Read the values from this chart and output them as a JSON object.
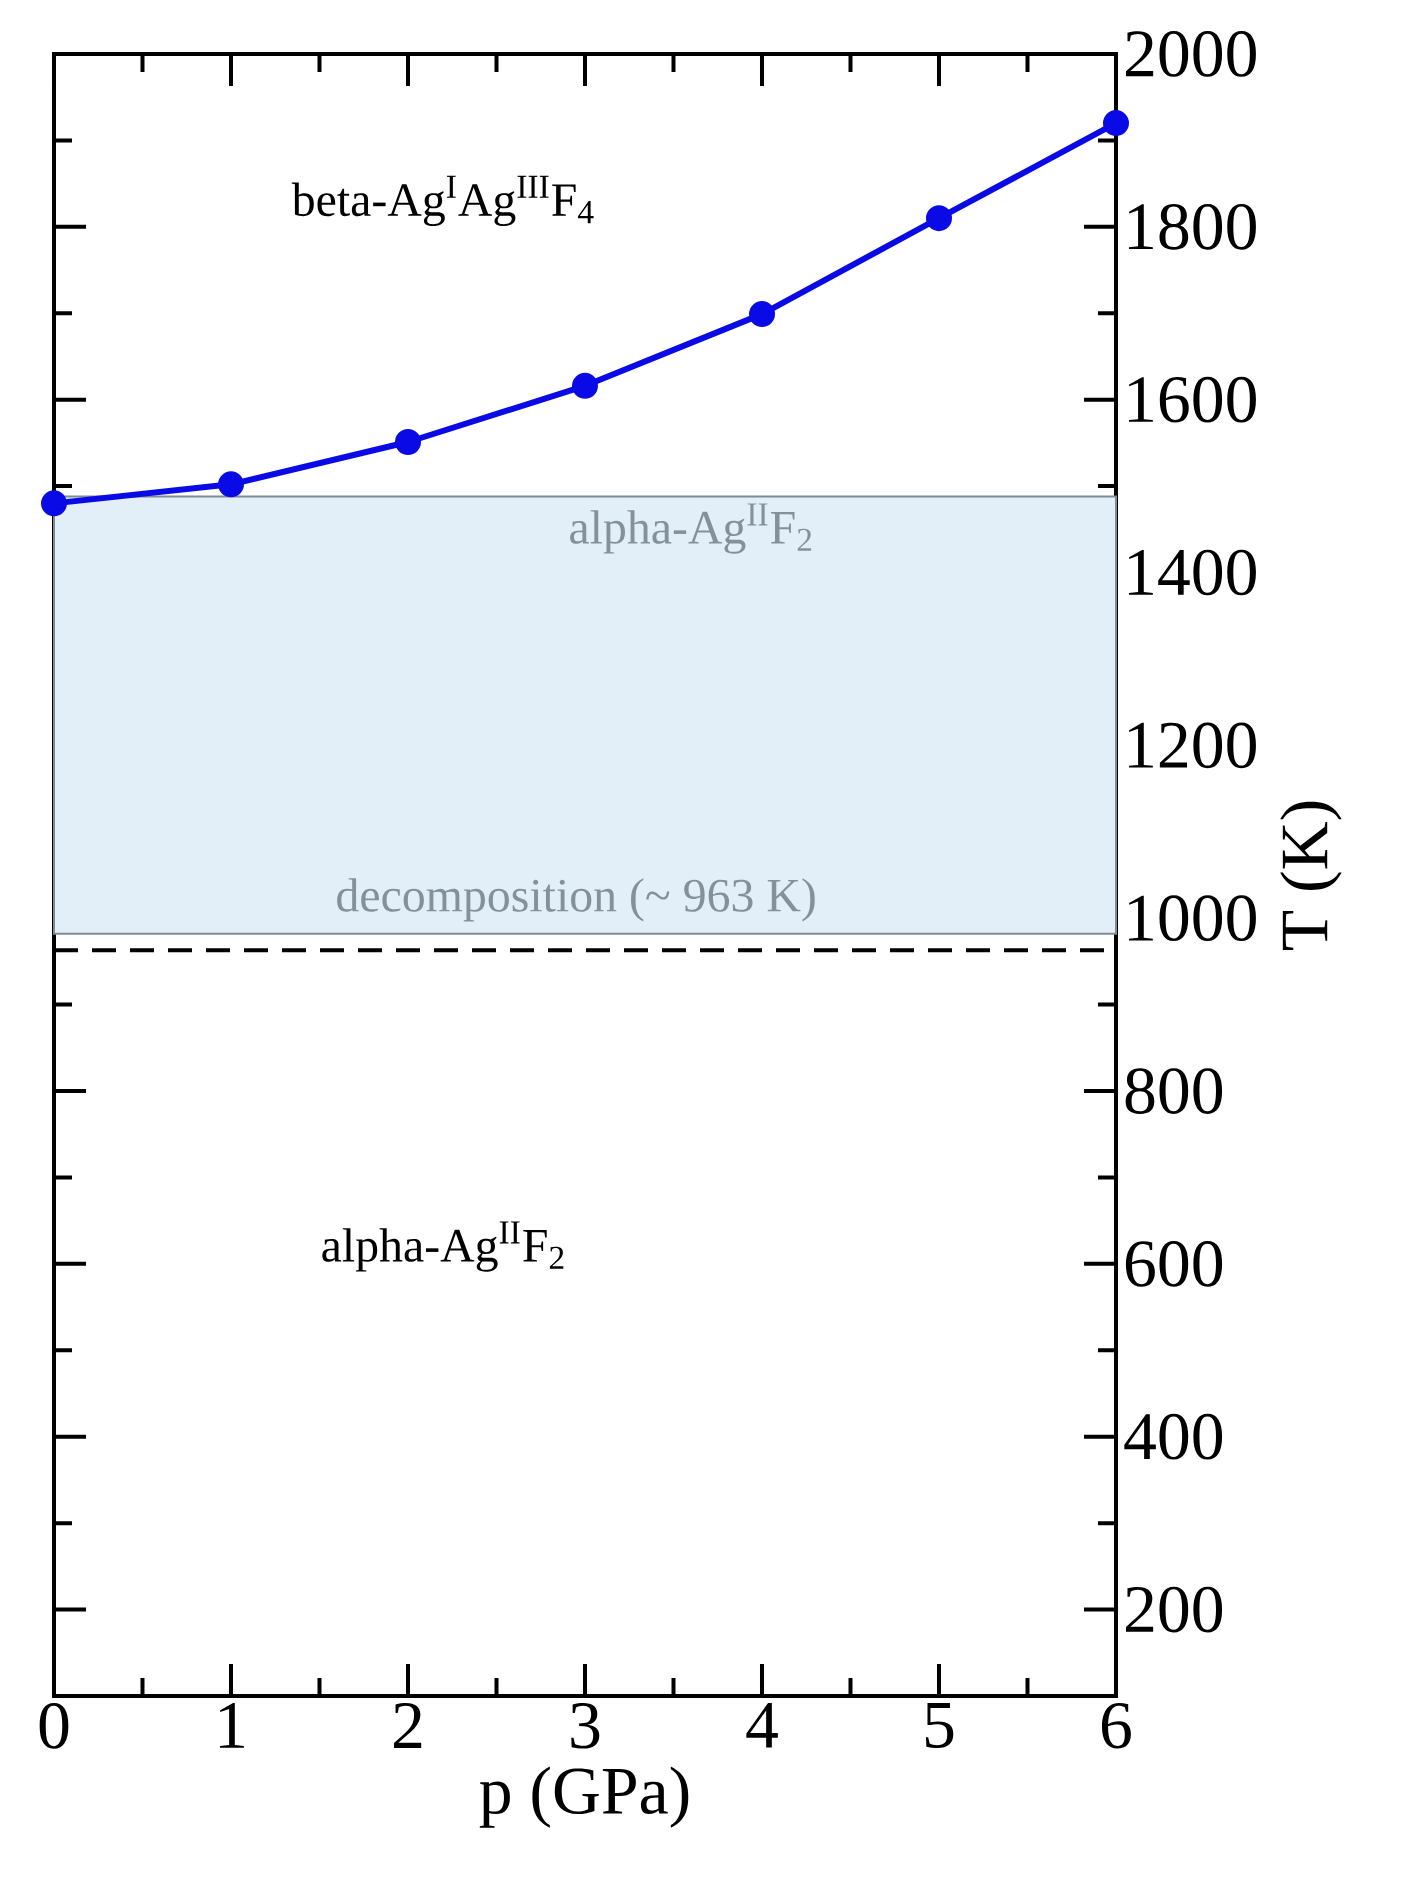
{
  "chart_data": {
    "type": "line",
    "xlabel": "p (GPa)",
    "ylabel": "T (K)",
    "x": [
      0,
      1,
      2,
      3,
      4,
      5,
      6
    ],
    "series": [
      {
        "color": "#0a0ae6",
        "values": [
          1480,
          1502,
          1551,
          1616,
          1699,
          1810,
          1920
        ]
      }
    ],
    "marker": "circle",
    "line_style": "solid",
    "xlim": [
      0,
      6
    ],
    "ylim": [
      100,
      2000
    ],
    "xticks": [
      0,
      1,
      2,
      3,
      4,
      5,
      6
    ],
    "yticks": [
      200,
      400,
      600,
      800,
      1000,
      1200,
      1400,
      1600,
      1800,
      2000
    ],
    "bands": [
      {
        "axis": "y",
        "from": 982,
        "to": 1488,
        "label": "alpha-Ag$^{II}$F$_{2}$",
        "color": "#e2eff8"
      }
    ],
    "ref_lines": [
      {
        "axis": "y",
        "value": 963,
        "label": "decomposition (~ 963 K)",
        "color": "#000000",
        "line_style": "dashed"
      }
    ],
    "annotations": [
      "beta-Ag$^{I}$Ag$^{III}$F$_{4}$",
      "alpha-Ag$^{II}$F$_{2}$"
    ]
  }
}
